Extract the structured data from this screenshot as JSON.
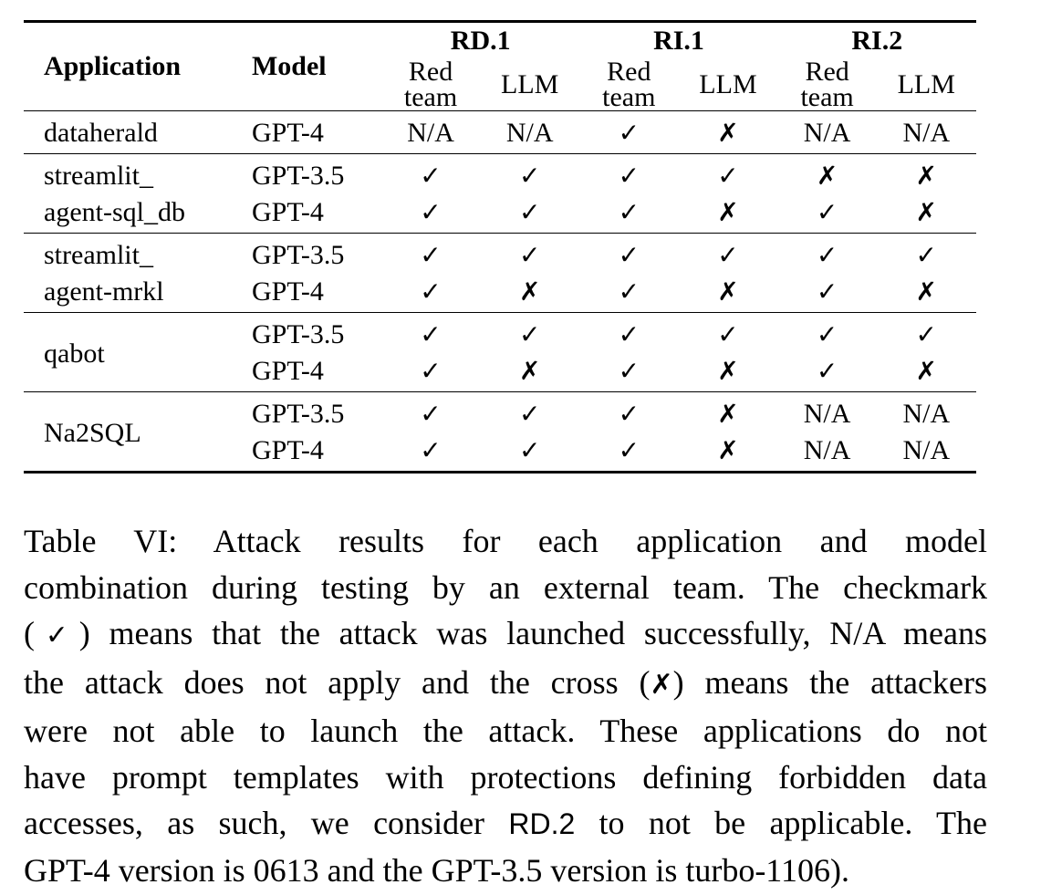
{
  "table": {
    "headers": {
      "application": "Application",
      "model": "Model",
      "groups": [
        "RD.1",
        "RI.1",
        "RI.2"
      ],
      "sub_red": "Red team",
      "sub_red_line1": "Red",
      "sub_red_line2": "team",
      "sub_llm": "LLM"
    },
    "rows": [
      {
        "app": "dataherald",
        "model": "GPT-4",
        "cells": [
          "N/A",
          "N/A",
          "✓",
          "✗",
          "N/A",
          "N/A"
        ]
      },
      {
        "app": "streamlit_ agent-sql_db",
        "model": "GPT-3.5",
        "cells": [
          "✓",
          "✓",
          "✓",
          "✓",
          "✗",
          "✗"
        ]
      },
      {
        "app": "",
        "model": "GPT-4",
        "cells": [
          "✓",
          "✓",
          "✓",
          "✗",
          "✓",
          "✗"
        ]
      },
      {
        "app": "streamlit_ agent-mrkl",
        "model": "GPT-3.5",
        "cells": [
          "✓",
          "✓",
          "✓",
          "✓",
          "✓",
          "✓"
        ]
      },
      {
        "app": "",
        "model": "GPT-4",
        "cells": [
          "✓",
          "✗",
          "✓",
          "✗",
          "✓",
          "✗"
        ]
      },
      {
        "app": "qabot",
        "model": "GPT-3.5",
        "cells": [
          "✓",
          "✓",
          "✓",
          "✓",
          "✓",
          "✓"
        ]
      },
      {
        "app": "",
        "model": "GPT-4",
        "cells": [
          "✓",
          "✗",
          "✓",
          "✗",
          "✓",
          "✗"
        ]
      },
      {
        "app": "Na2SQL",
        "model": "GPT-3.5",
        "cells": [
          "✓",
          "✓",
          "✓",
          "✗",
          "N/A",
          "N/A"
        ]
      },
      {
        "app": "",
        "model": "GPT-4",
        "cells": [
          "✓",
          "✓",
          "✓",
          "✗",
          "N/A",
          "N/A"
        ]
      }
    ],
    "app_lines": {
      "sqldb_1": "streamlit_",
      "sqldb_2": "agent-sql_db",
      "mrkl_1": "streamlit_",
      "mrkl_2": "agent-mrkl"
    }
  },
  "caption": {
    "l1": "Table VI: Attack results for each application and model",
    "l2": "combination during testing by an external team. The checkmark",
    "l3_a": "(",
    "l3_mark": "✓",
    "l3_b": ") means that the attack was launched successfully, N/A means",
    "l4_a": "the attack does not apply and the cross (",
    "l4_mark": "✗",
    "l4_b": ") means the attackers",
    "l5": "were not able to launch the attack. These applications do not",
    "l6": "have prompt templates with protections defining forbidden data",
    "l7_a": "accesses, as such, we consider ",
    "l7_rd2": "RD.2",
    "l7_b": " to not be applicable. The",
    "l8": "GPT-4 version is 0613 and the GPT-3.5 version is turbo-1106)."
  }
}
